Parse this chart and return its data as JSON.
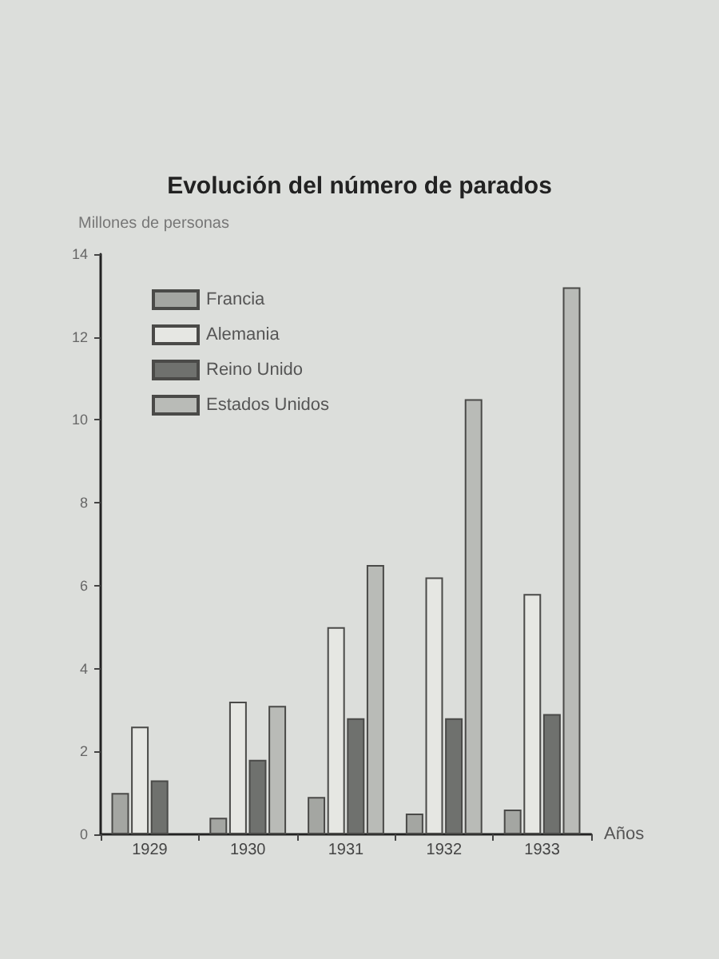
{
  "chart_data": {
    "type": "bar",
    "title": "Evolución del número de parados",
    "ylabel": "Millones de personas",
    "xlabel": "Años",
    "categories": [
      "1929",
      "1930",
      "1931",
      "1932",
      "1933"
    ],
    "series": [
      {
        "name": "Francia",
        "color": "#a4a6a2",
        "values": [
          1.0,
          0.4,
          0.9,
          0.5,
          0.6
        ]
      },
      {
        "name": "Alemania",
        "color": "#e6e7e3",
        "values": [
          2.6,
          3.2,
          5.0,
          6.2,
          5.8
        ]
      },
      {
        "name": "Reino Unido",
        "color": "#6f716e",
        "values": [
          1.3,
          1.8,
          2.8,
          2.8,
          2.9
        ]
      },
      {
        "name": "Estados Unidos",
        "color": "#b9bbb7",
        "values": [
          null,
          3.1,
          6.5,
          10.5,
          13.2
        ]
      }
    ],
    "ylim": [
      0,
      14
    ],
    "yticks": [
      0,
      2,
      4,
      6,
      8,
      10,
      12,
      14
    ],
    "legend": "top left",
    "grid": false
  }
}
